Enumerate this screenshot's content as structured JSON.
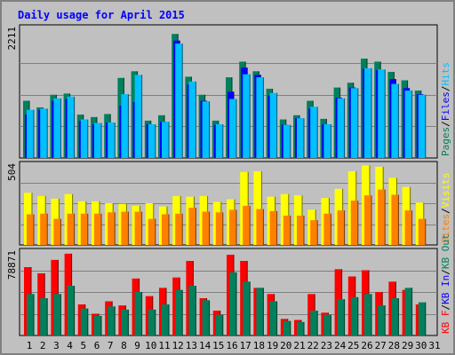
{
  "title": "Daily usage for April 2015",
  "colors": {
    "hits": "#00c0ff",
    "files": "#0000ff",
    "pages": "#00805c",
    "visits": "#ffff00",
    "sites": "#ff8000",
    "kb_f": "#ff0000",
    "kb_in": "#0000ff",
    "kb_out": "#00805c",
    "separator": "#000000"
  },
  "chart_data": [
    {
      "type": "bar",
      "panel": "hits",
      "ymax_label": "2211",
      "ymax": 2211,
      "legend": [
        {
          "key": "pages",
          "label": "Pages"
        },
        {
          "key": "sep",
          "label": "/"
        },
        {
          "key": "files",
          "label": "Files"
        },
        {
          "key": "sep",
          "label": "/"
        },
        {
          "key": "hits",
          "label": "Hits"
        }
      ],
      "series": [
        {
          "name": "Pages",
          "key": "pages",
          "values": [
            950,
            840,
            1050,
            1070,
            720,
            680,
            730,
            1330,
            1440,
            620,
            710,
            2060,
            1350,
            1050,
            620,
            1340,
            1600,
            1440,
            1150,
            640,
            710,
            950,
            650,
            1170,
            1250,
            1650,
            1600,
            1430,
            1290,
            1120
          ]
        },
        {
          "name": "Files",
          "key": "files",
          "values": [
            720,
            800,
            950,
            980,
            620,
            560,
            590,
            870,
            930,
            560,
            600,
            1950,
            1220,
            950,
            550,
            1100,
            1500,
            1380,
            1040,
            550,
            660,
            820,
            560,
            1000,
            1170,
            1480,
            1460,
            1310,
            1160,
            1060
          ]
        },
        {
          "name": "Hits",
          "key": "hits",
          "values": [
            800,
            820,
            990,
            1020,
            640,
            580,
            590,
            1060,
            1380,
            560,
            600,
            1900,
            1270,
            940,
            560,
            980,
            1390,
            1340,
            1080,
            550,
            660,
            850,
            560,
            990,
            1160,
            1490,
            1470,
            1230,
            1120,
            1050
          ]
        }
      ]
    },
    {
      "type": "bar",
      "panel": "visits",
      "ymax_label": "504",
      "ymax": 504,
      "legend": [
        {
          "key": "sites",
          "label": "Sites"
        },
        {
          "key": "sep",
          "label": "/"
        },
        {
          "key": "visits",
          "label": "Visits"
        }
      ],
      "series": [
        {
          "name": "Visits",
          "key": "visits",
          "values": [
            400,
            375,
            355,
            390,
            335,
            335,
            320,
            315,
            300,
            320,
            295,
            375,
            370,
            375,
            330,
            350,
            560,
            565,
            370,
            390,
            380,
            270,
            360,
            430,
            565,
            610,
            600,
            515,
            445,
            325
          ]
        },
        {
          "name": "Sites",
          "key": "sites",
          "values": [
            235,
            240,
            200,
            240,
            240,
            240,
            250,
            255,
            255,
            200,
            235,
            240,
            285,
            255,
            250,
            270,
            300,
            275,
            260,
            225,
            225,
            190,
            240,
            265,
            340,
            380,
            425,
            385,
            265,
            200
          ]
        }
      ]
    },
    {
      "type": "bar",
      "panel": "kbytes",
      "ymax_label": "78871",
      "ymax": 78871,
      "legend": [
        {
          "key": "kb_f",
          "label": "KB F"
        },
        {
          "key": "sep",
          "label": "/"
        },
        {
          "key": "kb_in",
          "label": "KB In"
        },
        {
          "key": "sep",
          "label": "/"
        },
        {
          "key": "kb_out",
          "label": "KB Out"
        }
      ],
      "series": [
        {
          "name": "KB F",
          "key": "kb_f",
          "values": [
            66000,
            60000,
            73000,
            79000,
            30000,
            21000,
            33000,
            29000,
            55000,
            38000,
            46000,
            56000,
            72000,
            36000,
            24000,
            78000,
            72000,
            46000,
            40000,
            16000,
            15000,
            40000,
            22000,
            64000,
            57000,
            63000,
            42000,
            52000,
            44000,
            30000
          ]
        },
        {
          "name": "KB Out",
          "key": "kb_out",
          "values": [
            40000,
            36000,
            40000,
            48000,
            26000,
            19000,
            28000,
            25000,
            42000,
            25000,
            30000,
            44000,
            48000,
            34000,
            20000,
            61000,
            52000,
            46000,
            33000,
            14000,
            13000,
            24000,
            20000,
            35000,
            37000,
            40000,
            29000,
            36000,
            46000,
            32000
          ]
        }
      ]
    }
  ],
  "x_labels": [
    {
      "label": "1",
      "weekend": false
    },
    {
      "label": "2",
      "weekend": false
    },
    {
      "label": "3",
      "weekend": false
    },
    {
      "label": "4",
      "weekend": true
    },
    {
      "label": "5",
      "weekend": true
    },
    {
      "label": "6",
      "weekend": false
    },
    {
      "label": "7",
      "weekend": false
    },
    {
      "label": "8",
      "weekend": false
    },
    {
      "label": "9",
      "weekend": false
    },
    {
      "label": "10",
      "weekend": false
    },
    {
      "label": "11",
      "weekend": true
    },
    {
      "label": "12",
      "weekend": true
    },
    {
      "label": "13",
      "weekend": false
    },
    {
      "label": "14",
      "weekend": false
    },
    {
      "label": "15",
      "weekend": false
    },
    {
      "label": "16",
      "weekend": false
    },
    {
      "label": "17",
      "weekend": false
    },
    {
      "label": "18",
      "weekend": true
    },
    {
      "label": "19",
      "weekend": true
    },
    {
      "label": "20",
      "weekend": false
    },
    {
      "label": "21",
      "weekend": false
    },
    {
      "label": "22",
      "weekend": false
    },
    {
      "label": "23",
      "weekend": false
    },
    {
      "label": "24",
      "weekend": false
    },
    {
      "label": "25",
      "weekend": true
    },
    {
      "label": "26",
      "weekend": true
    },
    {
      "label": "27",
      "weekend": false
    },
    {
      "label": "28",
      "weekend": false
    },
    {
      "label": "29",
      "weekend": false
    },
    {
      "label": "30",
      "weekend": false
    },
    {
      "label": "31",
      "weekend": false
    }
  ],
  "weekend_color": "#00805c"
}
